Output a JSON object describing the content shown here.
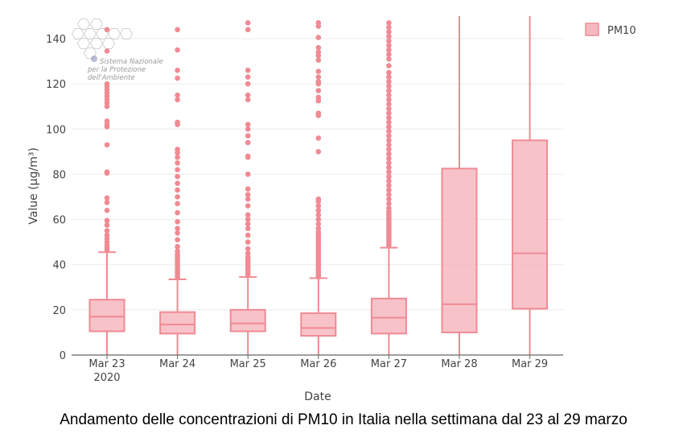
{
  "caption": "Andamento delle concentrazioni di PM10 in Italia nella settimana dal 23 al 29 marzo",
  "logo": {
    "lines": [
      "Sistema Nazionale",
      "per la Protezione",
      "dell'Ambiente"
    ]
  },
  "colors": {
    "series": "#f08a93",
    "fill": "#f6b8bf",
    "grid": "#ebebeb",
    "axis": "#666666"
  },
  "chart_data": {
    "type": "box",
    "title": "",
    "xlabel": "Date",
    "ylabel": "Value (μg/m³)",
    "ylim": [
      0,
      150
    ],
    "yticks": [
      0,
      20,
      40,
      60,
      80,
      100,
      120,
      140
    ],
    "grid": true,
    "legend": {
      "position": "top-right",
      "entries": [
        "PM10"
      ]
    },
    "categories": [
      "Mar 23",
      "Mar 24",
      "Mar 25",
      "Mar 26",
      "Mar 27",
      "Mar 28",
      "Mar 29"
    ],
    "first_tick_sublabel": "2020",
    "series": [
      {
        "name": "PM10",
        "boxes": [
          {
            "date": "Mar 23",
            "min": 0,
            "q1": 10.5,
            "median": 17,
            "q3": 24.5,
            "upper_fence": 45.5,
            "outliers": [
              46.5,
              47.5,
              48.5,
              50,
              51.5,
              53,
              55,
              57.5,
              59.5,
              64,
              67.5,
              69.5,
              80.5,
              81,
              93,
              101,
              102,
              103.5,
              110,
              111.5,
              113,
              114.5,
              116,
              117.5,
              119,
              120,
              134.5,
              144
            ]
          },
          {
            "date": "Mar 24",
            "min": 0,
            "q1": 9.5,
            "median": 13.5,
            "q3": 19,
            "upper_fence": 33.5,
            "outliers": [
              34.5,
              35.5,
              36.5,
              37.5,
              38.5,
              39.5,
              40.5,
              41.5,
              42.5,
              43.5,
              44.5,
              46,
              48,
              51,
              54,
              56,
              59,
              63,
              67,
              70,
              73,
              76,
              79,
              82,
              85,
              87.5,
              89.5,
              91,
              102,
              103,
              113,
              115,
              122.5,
              126,
              135,
              144
            ]
          },
          {
            "date": "Mar 25",
            "min": 0,
            "q1": 10.5,
            "median": 14,
            "q3": 20,
            "upper_fence": 34.5,
            "outliers": [
              35.5,
              36.5,
              37.5,
              38.5,
              39.5,
              40.5,
              41.5,
              42.5,
              43.5,
              45,
              47,
              50,
              53,
              56,
              58,
              60,
              62,
              66,
              69,
              71,
              73.5,
              80,
              87.5,
              88,
              94,
              97,
              100,
              102,
              113,
              115,
              120,
              123,
              126,
              144,
              147
            ]
          },
          {
            "date": "Mar 26",
            "min": 0,
            "q1": 8.5,
            "median": 12,
            "q3": 18.5,
            "upper_fence": 34,
            "outliers": [
              34.5,
              35.5,
              36.5,
              37.5,
              38.5,
              39.5,
              40.5,
              41.5,
              42.5,
              43.5,
              44.5,
              45.5,
              46.5,
              47.5,
              48.5,
              49.5,
              50.5,
              51.5,
              52.5,
              53.5,
              54.5,
              56,
              58,
              60,
              62,
              64,
              66,
              68,
              69,
              90,
              96,
              106,
              107,
              112.5,
              114,
              117,
              120,
              121,
              123,
              125.5,
              130.5,
              132.5,
              134,
              136,
              140.5,
              145.5,
              147
            ]
          },
          {
            "date": "Mar 27",
            "min": 0,
            "q1": 9.5,
            "median": 16.5,
            "q3": 25,
            "upper_fence": 47.5,
            "outliers": [
              48.5,
              49.5,
              50.5,
              51.5,
              52.5,
              53.5,
              54.5,
              55.5,
              56.5,
              57.5,
              58.5,
              59.5,
              60.5,
              61.5,
              62.5,
              63.5,
              65,
              67,
              69,
              71,
              73,
              75,
              77,
              79,
              81,
              83,
              85,
              87,
              89,
              91,
              93,
              95,
              97,
              99,
              101,
              103,
              105,
              107,
              109,
              111,
              113,
              115,
              117,
              119,
              121,
              123,
              125,
              128,
              131,
              133,
              135,
              137,
              139,
              141,
              143,
              145,
              147
            ]
          },
          {
            "date": "Mar 28",
            "min": 0,
            "q1": 10,
            "median": 22.5,
            "q3": 82.5,
            "upper_fence": 150,
            "outliers": []
          },
          {
            "date": "Mar 29",
            "min": 0,
            "q1": 20.5,
            "median": 45,
            "q3": 95,
            "upper_fence": 150,
            "outliers": []
          }
        ]
      }
    ]
  }
}
